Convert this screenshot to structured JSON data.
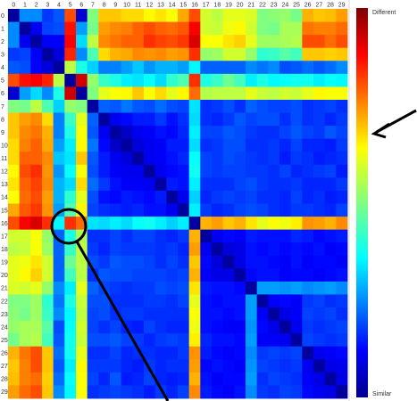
{
  "chart_data": {
    "type": "heatmap",
    "title": "",
    "xlabel": "",
    "ylabel": "",
    "x_ticks": [
      "0",
      "1",
      "2",
      "3",
      "4",
      "5",
      "6",
      "7",
      "8",
      "9",
      "10",
      "11",
      "12",
      "13",
      "14",
      "15",
      "16",
      "17",
      "18",
      "19",
      "20",
      "21",
      "22",
      "23",
      "24",
      "25",
      "26",
      "27",
      "28",
      "29"
    ],
    "y_ticks": [
      "0",
      "1",
      "2",
      "3",
      "4",
      "5",
      "6",
      "7",
      "8",
      "9",
      "10",
      "11",
      "12",
      "13",
      "14",
      "15",
      "16",
      "17",
      "18",
      "19",
      "20",
      "21",
      "22",
      "23",
      "24",
      "25",
      "26",
      "27",
      "28",
      "29"
    ],
    "colorbar": {
      "colormap": "jet",
      "range": [
        0,
        1
      ],
      "top_label": "Different",
      "bottom_label": "Similar"
    },
    "annotations": {
      "circle_cell": {
        "row": 16,
        "col": 5
      },
      "arrow_target": "colorbar",
      "line_from": "circle"
    },
    "matrix": [
      [
        0.03,
        0.26,
        0.26,
        0.18,
        0.21,
        0.8,
        0.08,
        0.5,
        0.68,
        0.68,
        0.66,
        0.66,
        0.63,
        0.65,
        0.62,
        0.71,
        0.8,
        0.58,
        0.56,
        0.6,
        0.6,
        0.59,
        0.5,
        0.51,
        0.52,
        0.49,
        0.7,
        0.68,
        0.69,
        0.72
      ],
      [
        0.26,
        0.03,
        0.11,
        0.19,
        0.2,
        0.86,
        0.28,
        0.49,
        0.72,
        0.74,
        0.75,
        0.78,
        0.8,
        0.78,
        0.77,
        0.79,
        0.88,
        0.58,
        0.57,
        0.61,
        0.63,
        0.58,
        0.5,
        0.49,
        0.54,
        0.54,
        0.76,
        0.75,
        0.75,
        0.77
      ],
      [
        0.26,
        0.11,
        0.03,
        0.12,
        0.12,
        0.88,
        0.34,
        0.56,
        0.74,
        0.76,
        0.78,
        0.78,
        0.83,
        0.81,
        0.8,
        0.82,
        0.91,
        0.62,
        0.62,
        0.65,
        0.67,
        0.6,
        0.53,
        0.53,
        0.54,
        0.55,
        0.8,
        0.8,
        0.77,
        0.8
      ],
      [
        0.18,
        0.19,
        0.12,
        0.03,
        0.09,
        0.84,
        0.26,
        0.45,
        0.66,
        0.7,
        0.71,
        0.74,
        0.73,
        0.74,
        0.72,
        0.73,
        0.83,
        0.52,
        0.53,
        0.58,
        0.58,
        0.52,
        0.42,
        0.43,
        0.46,
        0.44,
        0.68,
        0.68,
        0.67,
        0.68
      ],
      [
        0.21,
        0.2,
        0.12,
        0.09,
        0.03,
        0.56,
        0.4,
        0.33,
        0.25,
        0.25,
        0.28,
        0.32,
        0.27,
        0.3,
        0.3,
        0.28,
        0.37,
        0.22,
        0.22,
        0.22,
        0.22,
        0.26,
        0.24,
        0.26,
        0.2,
        0.21,
        0.23,
        0.21,
        0.23,
        0.26
      ],
      [
        0.8,
        0.86,
        0.88,
        0.84,
        0.56,
        0.03,
        0.92,
        0.52,
        0.43,
        0.4,
        0.36,
        0.35,
        0.38,
        0.34,
        0.42,
        0.45,
        0.83,
        0.4,
        0.43,
        0.48,
        0.44,
        0.36,
        0.4,
        0.37,
        0.38,
        0.39,
        0.39,
        0.36,
        0.38,
        0.37
      ],
      [
        0.08,
        0.28,
        0.34,
        0.26,
        0.4,
        0.92,
        0.03,
        0.5,
        0.6,
        0.62,
        0.63,
        0.68,
        0.62,
        0.66,
        0.6,
        0.63,
        0.77,
        0.55,
        0.56,
        0.56,
        0.56,
        0.6,
        0.57,
        0.56,
        0.58,
        0.57,
        0.6,
        0.63,
        0.62,
        0.62
      ],
      [
        0.5,
        0.49,
        0.56,
        0.45,
        0.33,
        0.52,
        0.5,
        0.03,
        0.22,
        0.21,
        0.24,
        0.21,
        0.2,
        0.23,
        0.2,
        0.19,
        0.35,
        0.17,
        0.18,
        0.2,
        0.17,
        0.22,
        0.2,
        0.19,
        0.19,
        0.2,
        0.17,
        0.18,
        0.19,
        0.17
      ],
      [
        0.68,
        0.72,
        0.74,
        0.66,
        0.25,
        0.43,
        0.6,
        0.22,
        0.03,
        0.11,
        0.13,
        0.15,
        0.15,
        0.18,
        0.14,
        0.17,
        0.34,
        0.17,
        0.16,
        0.18,
        0.21,
        0.19,
        0.2,
        0.2,
        0.17,
        0.2,
        0.17,
        0.18,
        0.16,
        0.18
      ],
      [
        0.68,
        0.74,
        0.76,
        0.7,
        0.25,
        0.4,
        0.62,
        0.21,
        0.11,
        0.03,
        0.07,
        0.11,
        0.12,
        0.14,
        0.13,
        0.16,
        0.36,
        0.19,
        0.19,
        0.21,
        0.2,
        0.18,
        0.17,
        0.17,
        0.19,
        0.21,
        0.19,
        0.18,
        0.21,
        0.19
      ],
      [
        0.66,
        0.75,
        0.78,
        0.71,
        0.28,
        0.36,
        0.63,
        0.24,
        0.13,
        0.07,
        0.03,
        0.09,
        0.11,
        0.12,
        0.15,
        0.15,
        0.34,
        0.17,
        0.18,
        0.2,
        0.2,
        0.17,
        0.17,
        0.18,
        0.16,
        0.19,
        0.16,
        0.16,
        0.15,
        0.18
      ],
      [
        0.66,
        0.78,
        0.78,
        0.74,
        0.32,
        0.35,
        0.68,
        0.21,
        0.15,
        0.11,
        0.09,
        0.03,
        0.11,
        0.12,
        0.14,
        0.16,
        0.38,
        0.19,
        0.18,
        0.2,
        0.19,
        0.18,
        0.17,
        0.18,
        0.15,
        0.18,
        0.17,
        0.15,
        0.16,
        0.17
      ],
      [
        0.63,
        0.8,
        0.83,
        0.73,
        0.27,
        0.38,
        0.62,
        0.2,
        0.15,
        0.12,
        0.11,
        0.11,
        0.03,
        0.11,
        0.13,
        0.14,
        0.39,
        0.19,
        0.18,
        0.19,
        0.19,
        0.18,
        0.18,
        0.17,
        0.19,
        0.16,
        0.17,
        0.18,
        0.19,
        0.15
      ],
      [
        0.65,
        0.78,
        0.81,
        0.74,
        0.3,
        0.34,
        0.66,
        0.23,
        0.18,
        0.14,
        0.12,
        0.12,
        0.11,
        0.03,
        0.15,
        0.14,
        0.36,
        0.17,
        0.17,
        0.17,
        0.19,
        0.2,
        0.18,
        0.17,
        0.17,
        0.18,
        0.16,
        0.16,
        0.16,
        0.18
      ],
      [
        0.62,
        0.77,
        0.8,
        0.72,
        0.3,
        0.42,
        0.6,
        0.2,
        0.14,
        0.13,
        0.15,
        0.14,
        0.13,
        0.15,
        0.03,
        0.11,
        0.33,
        0.16,
        0.18,
        0.19,
        0.18,
        0.19,
        0.17,
        0.17,
        0.16,
        0.19,
        0.16,
        0.17,
        0.15,
        0.16
      ],
      [
        0.71,
        0.79,
        0.82,
        0.73,
        0.28,
        0.45,
        0.63,
        0.19,
        0.17,
        0.16,
        0.15,
        0.16,
        0.14,
        0.14,
        0.11,
        0.03,
        0.36,
        0.18,
        0.16,
        0.17,
        0.19,
        0.2,
        0.19,
        0.17,
        0.16,
        0.18,
        0.18,
        0.17,
        0.16,
        0.19
      ],
      [
        0.8,
        0.88,
        0.91,
        0.83,
        0.37,
        0.83,
        0.77,
        0.35,
        0.34,
        0.36,
        0.34,
        0.38,
        0.39,
        0.36,
        0.33,
        0.36,
        0.03,
        0.7,
        0.72,
        0.68,
        0.7,
        0.65,
        0.6,
        0.62,
        0.61,
        0.64,
        0.73,
        0.72,
        0.7,
        0.74
      ],
      [
        0.58,
        0.58,
        0.62,
        0.52,
        0.22,
        0.4,
        0.55,
        0.17,
        0.17,
        0.19,
        0.17,
        0.19,
        0.19,
        0.17,
        0.16,
        0.18,
        0.7,
        0.03,
        0.11,
        0.13,
        0.12,
        0.15,
        0.14,
        0.14,
        0.14,
        0.16,
        0.15,
        0.13,
        0.14,
        0.15
      ],
      [
        0.56,
        0.57,
        0.62,
        0.53,
        0.22,
        0.43,
        0.56,
        0.18,
        0.16,
        0.19,
        0.18,
        0.18,
        0.18,
        0.17,
        0.18,
        0.16,
        0.72,
        0.11,
        0.03,
        0.09,
        0.1,
        0.14,
        0.13,
        0.14,
        0.13,
        0.14,
        0.13,
        0.14,
        0.12,
        0.13
      ],
      [
        0.6,
        0.61,
        0.65,
        0.58,
        0.22,
        0.48,
        0.56,
        0.2,
        0.18,
        0.21,
        0.2,
        0.2,
        0.19,
        0.17,
        0.19,
        0.17,
        0.68,
        0.13,
        0.09,
        0.03,
        0.1,
        0.14,
        0.14,
        0.13,
        0.12,
        0.14,
        0.12,
        0.13,
        0.13,
        0.12
      ],
      [
        0.6,
        0.63,
        0.67,
        0.58,
        0.22,
        0.44,
        0.56,
        0.17,
        0.21,
        0.2,
        0.2,
        0.19,
        0.19,
        0.19,
        0.18,
        0.19,
        0.7,
        0.12,
        0.1,
        0.1,
        0.03,
        0.13,
        0.14,
        0.14,
        0.12,
        0.13,
        0.13,
        0.12,
        0.13,
        0.14
      ],
      [
        0.59,
        0.58,
        0.6,
        0.52,
        0.26,
        0.36,
        0.6,
        0.22,
        0.19,
        0.18,
        0.17,
        0.18,
        0.18,
        0.2,
        0.19,
        0.2,
        0.65,
        0.15,
        0.14,
        0.14,
        0.13,
        0.03,
        0.28,
        0.28,
        0.27,
        0.28,
        0.26,
        0.27,
        0.28,
        0.26
      ],
      [
        0.5,
        0.5,
        0.53,
        0.42,
        0.24,
        0.4,
        0.57,
        0.2,
        0.2,
        0.17,
        0.17,
        0.17,
        0.18,
        0.18,
        0.17,
        0.19,
        0.6,
        0.14,
        0.13,
        0.14,
        0.14,
        0.28,
        0.03,
        0.12,
        0.13,
        0.12,
        0.18,
        0.19,
        0.17,
        0.18
      ],
      [
        0.51,
        0.49,
        0.53,
        0.43,
        0.26,
        0.37,
        0.56,
        0.19,
        0.2,
        0.17,
        0.18,
        0.18,
        0.17,
        0.17,
        0.17,
        0.17,
        0.62,
        0.14,
        0.14,
        0.13,
        0.14,
        0.28,
        0.12,
        0.03,
        0.1,
        0.12,
        0.19,
        0.18,
        0.19,
        0.17
      ],
      [
        0.52,
        0.54,
        0.54,
        0.46,
        0.2,
        0.38,
        0.58,
        0.19,
        0.17,
        0.19,
        0.16,
        0.15,
        0.19,
        0.17,
        0.16,
        0.16,
        0.61,
        0.14,
        0.13,
        0.12,
        0.12,
        0.27,
        0.13,
        0.1,
        0.03,
        0.11,
        0.18,
        0.17,
        0.18,
        0.19
      ],
      [
        0.49,
        0.54,
        0.55,
        0.44,
        0.21,
        0.39,
        0.57,
        0.2,
        0.2,
        0.21,
        0.19,
        0.18,
        0.16,
        0.18,
        0.19,
        0.18,
        0.64,
        0.16,
        0.14,
        0.14,
        0.13,
        0.28,
        0.12,
        0.12,
        0.11,
        0.03,
        0.19,
        0.18,
        0.17,
        0.18
      ],
      [
        0.7,
        0.76,
        0.8,
        0.68,
        0.23,
        0.39,
        0.6,
        0.17,
        0.17,
        0.19,
        0.16,
        0.17,
        0.17,
        0.16,
        0.16,
        0.18,
        0.73,
        0.15,
        0.13,
        0.12,
        0.13,
        0.26,
        0.18,
        0.19,
        0.18,
        0.19,
        0.03,
        0.11,
        0.12,
        0.13
      ],
      [
        0.68,
        0.75,
        0.8,
        0.68,
        0.21,
        0.36,
        0.63,
        0.18,
        0.18,
        0.18,
        0.16,
        0.15,
        0.18,
        0.16,
        0.17,
        0.17,
        0.72,
        0.13,
        0.14,
        0.13,
        0.12,
        0.27,
        0.19,
        0.18,
        0.17,
        0.18,
        0.11,
        0.03,
        0.1,
        0.11
      ],
      [
        0.69,
        0.75,
        0.77,
        0.67,
        0.23,
        0.38,
        0.62,
        0.19,
        0.16,
        0.21,
        0.15,
        0.16,
        0.19,
        0.16,
        0.15,
        0.16,
        0.7,
        0.14,
        0.12,
        0.13,
        0.13,
        0.28,
        0.17,
        0.19,
        0.18,
        0.17,
        0.12,
        0.1,
        0.03,
        0.1
      ],
      [
        0.72,
        0.77,
        0.8,
        0.68,
        0.26,
        0.37,
        0.62,
        0.17,
        0.18,
        0.19,
        0.18,
        0.17,
        0.15,
        0.18,
        0.16,
        0.19,
        0.74,
        0.15,
        0.13,
        0.12,
        0.14,
        0.26,
        0.18,
        0.17,
        0.19,
        0.18,
        0.13,
        0.11,
        0.1,
        0.03
      ]
    ]
  }
}
